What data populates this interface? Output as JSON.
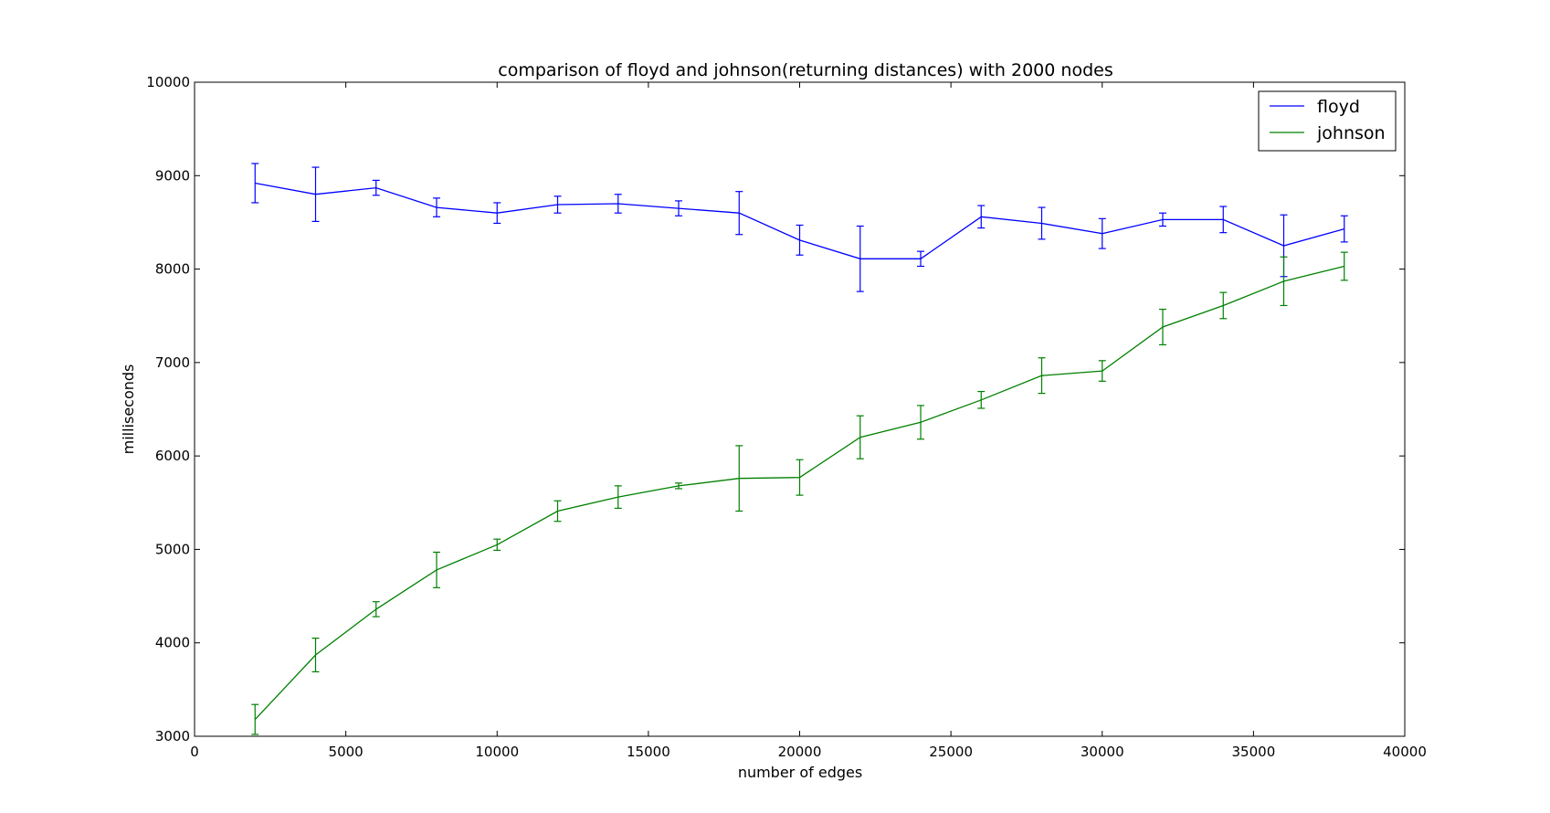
{
  "chart_data": {
    "type": "line",
    "title": "comparison of floyd and johnson(returning distances) with 2000 nodes",
    "xlabel": "number of edges",
    "ylabel": "milliseconds",
    "xlim": [
      0,
      40000
    ],
    "ylim": [
      3000,
      10000
    ],
    "xticks": [
      0,
      5000,
      10000,
      15000,
      20000,
      25000,
      30000,
      35000,
      40000
    ],
    "yticks": [
      3000,
      4000,
      5000,
      6000,
      7000,
      8000,
      9000,
      10000
    ],
    "grid": false,
    "legend_position": "top-right",
    "x": [
      2000,
      4000,
      6000,
      8000,
      10000,
      12000,
      14000,
      16000,
      18000,
      20000,
      22000,
      24000,
      26000,
      28000,
      30000,
      32000,
      34000,
      36000,
      38000
    ],
    "series": [
      {
        "name": "floyd",
        "color": "#0000ff",
        "values": [
          8920,
          8800,
          8870,
          8660,
          8600,
          8690,
          8700,
          8650,
          8600,
          8310,
          8110,
          8110,
          8560,
          8490,
          8380,
          8530,
          8530,
          8250,
          8430
        ],
        "errors": [
          210,
          290,
          80,
          100,
          110,
          90,
          100,
          80,
          230,
          160,
          350,
          80,
          120,
          170,
          160,
          70,
          140,
          330,
          140
        ]
      },
      {
        "name": "johnson",
        "color": "#008000",
        "values": [
          3180,
          3870,
          4360,
          4780,
          5050,
          5410,
          5560,
          5680,
          5760,
          5770,
          6200,
          6360,
          6600,
          6860,
          6910,
          7380,
          7610,
          7870,
          8030
        ],
        "errors": [
          160,
          180,
          80,
          190,
          60,
          110,
          120,
          30,
          350,
          190,
          230,
          180,
          90,
          190,
          110,
          190,
          140,
          260,
          150
        ]
      }
    ]
  }
}
